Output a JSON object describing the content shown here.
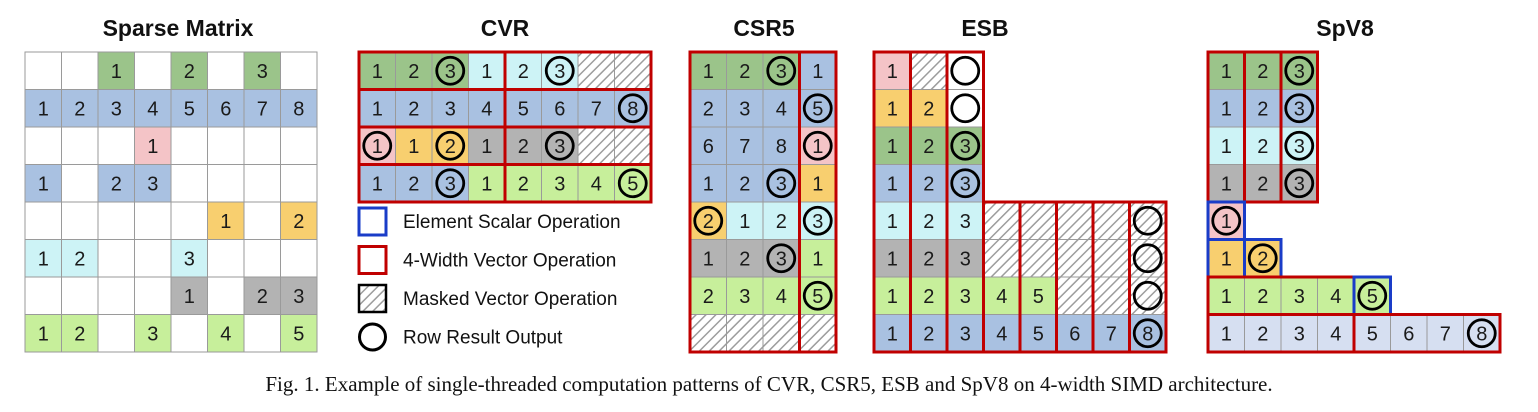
{
  "colors": {
    "green": "#9bc48a",
    "blue": "#a9c1e1",
    "pink": "#f4c4c7",
    "orange": "#f8cf6f",
    "cyan": "#cdf3f6",
    "gray": "#b3b3b3",
    "lime": "#c7ef9b",
    "lavender": "#d6dff1",
    "white": "#ffffff",
    "red": "#c00000",
    "navy": "#1a3cc8",
    "grid": "#9a9a9a"
  },
  "caption": "Fig. 1.  Example of single-threaded computation patterns of CVR, CSR5, ESB and SpV8 on 4-width SIMD architecture.",
  "legend": [
    {
      "type": "blue",
      "label": "Element Scalar Operation"
    },
    {
      "type": "red",
      "label": "4-Width Vector Operation"
    },
    {
      "type": "hatch",
      "label": "Masked Vector Operation"
    },
    {
      "type": "circle",
      "label": "Row Result Output"
    }
  ],
  "panels": [
    {
      "title": "Sparse Matrix",
      "rows": [
        [
          "",
          "",
          "1:green",
          "",
          "2:green",
          "",
          "3:green",
          ""
        ],
        [
          "1:blue",
          "2:blue",
          "3:blue",
          "4:blue",
          "5:blue",
          "6:blue",
          "7:blue",
          "8:blue"
        ],
        [
          "",
          "",
          "",
          "1:pink",
          "",
          "",
          "",
          ""
        ],
        [
          "1:blue",
          "",
          "2:blue",
          "3:blue",
          "",
          "",
          "",
          ""
        ],
        [
          "",
          "",
          "",
          "",
          "",
          "1:orange",
          "",
          "2:orange"
        ],
        [
          "1:cyan",
          "2:cyan",
          "",
          "",
          "3:cyan",
          "",
          "",
          ""
        ],
        [
          "",
          "",
          "",
          "",
          "1:gray",
          "",
          "2:gray",
          "3:gray"
        ],
        [
          "1:lime",
          "2:lime",
          "",
          "3:lime",
          "",
          "4:lime",
          "",
          "5:lime"
        ]
      ]
    },
    {
      "title": "CVR",
      "rows": [
        [
          "1:green",
          "2:green",
          "3:green:o",
          "1:cyan",
          "2:cyan",
          "3:cyan:o",
          "hatch",
          "hatch"
        ],
        [
          "1:blue",
          "2:blue",
          "3:blue",
          "4:blue",
          "5:blue",
          "6:blue",
          "7:blue",
          "8:blue:o"
        ],
        [
          "1:pink:o",
          "1:orange",
          "2:orange:o",
          "1:gray",
          "2:gray",
          "3:gray:o",
          "hatch",
          "hatch"
        ],
        [
          "1:blue",
          "2:blue",
          "3:blue:o",
          "1:lime",
          "2:lime",
          "3:lime",
          "4:lime",
          "5:lime:o"
        ]
      ]
    },
    {
      "title": "CSR5",
      "rows": [
        [
          "1:green",
          "2:green",
          "3:green:o",
          "1:blue"
        ],
        [
          "2:blue",
          "3:blue",
          "4:blue",
          "5:blue:o"
        ],
        [
          "6:blue",
          "7:blue",
          "8:blue",
          "1:pink:o"
        ],
        [
          "1:blue",
          "2:blue",
          "3:blue:o",
          "1:orange"
        ],
        [
          "2:orange:o",
          "1:cyan",
          "2:cyan",
          "3:cyan:o"
        ],
        [
          "1:gray",
          "2:gray",
          "3:gray:o",
          "1:lime"
        ],
        [
          "2:lime",
          "3:lime",
          "4:lime",
          "5:lime:o"
        ],
        [
          "hatch",
          "hatch",
          "hatch",
          "hatch"
        ]
      ]
    },
    {
      "title": "ESB",
      "rows": [
        [
          "1:pink",
          "hatch",
          ":white:o"
        ],
        [
          "1:orange",
          "2:orange",
          ":white:o"
        ],
        [
          "1:green",
          "2:green",
          "3:green:o"
        ],
        [
          "1:blue",
          "2:blue",
          "3:blue:o"
        ],
        [
          "1:cyan",
          "2:cyan",
          "3:cyan",
          "hatch",
          "hatch",
          "hatch",
          "hatch",
          "hatch:o"
        ],
        [
          "1:gray",
          "2:gray",
          "3:gray",
          "hatch",
          "hatch",
          "hatch",
          "hatch",
          "hatch:o"
        ],
        [
          "1:lime",
          "2:lime",
          "3:lime",
          "4:lime",
          "5:lime",
          "hatch",
          "hatch",
          "hatch:o"
        ],
        [
          "1:blue",
          "2:blue",
          "3:blue",
          "4:blue",
          "5:blue",
          "6:blue",
          "7:blue",
          "8:blue:o"
        ]
      ]
    },
    {
      "title": "SpV8",
      "rows": [
        [
          "1:green",
          "2:green",
          "3:green:o"
        ],
        [
          "1:blue",
          "2:blue",
          "3:blue:o"
        ],
        [
          "1:cyan",
          "2:cyan",
          "3:cyan:o"
        ],
        [
          "1:gray",
          "2:gray",
          "3:gray:o"
        ],
        [
          "1:pink:o"
        ],
        [
          "1:orange",
          "2:orange:o"
        ],
        [
          "1:lime",
          "2:lime",
          "3:lime",
          "4:lime",
          "5:lime:o"
        ],
        [
          "1:lavender",
          "2:lavender",
          "3:lavender",
          "4:lavender",
          "5:lavender",
          "6:lavender",
          "7:lavender",
          "8:lavender:o"
        ]
      ]
    }
  ]
}
